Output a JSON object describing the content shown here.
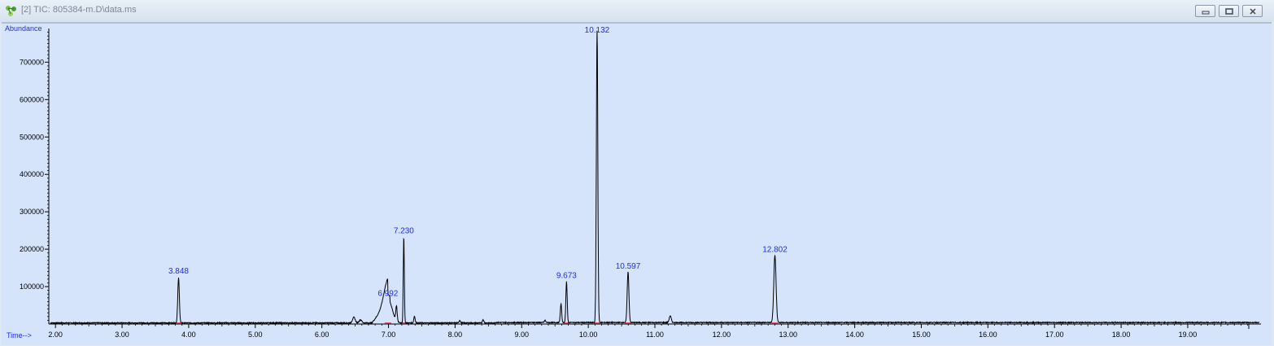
{
  "window": {
    "title": "[2] TIC: 805384-m.D\\data.ms",
    "app_icon": "molecule-icon",
    "buttons": [
      "minimize-icon",
      "restore-icon",
      "close-icon"
    ]
  },
  "colors": {
    "plot_bg": "#d5e3fb",
    "trace": "#000000",
    "labels": "#1f2ee8",
    "baseline_marks": "#e0223c",
    "axis_text": "#000000"
  },
  "chart_data": {
    "type": "line",
    "title": "",
    "ylabel": "Abundance",
    "xlabel": "Time-->",
    "xlim": [
      1.9,
      20.1
    ],
    "ylim": [
      0,
      790000
    ],
    "x_ticks": [
      2.0,
      3.0,
      4.0,
      5.0,
      6.0,
      7.0,
      8.0,
      9.0,
      10.0,
      11.0,
      12.0,
      13.0,
      14.0,
      15.0,
      16.0,
      17.0,
      18.0,
      19.0
    ],
    "x_tick_labels": [
      "2.00",
      "3.00",
      "4.00",
      "5.00",
      "6.00",
      "7.00",
      "8.00",
      "9.00",
      "10.00",
      "11.00",
      "12.00",
      "13.00",
      "14.00",
      "15.00",
      "16.00",
      "17.00",
      "18.00",
      "19.00"
    ],
    "y_ticks": [
      100000,
      200000,
      300000,
      400000,
      500000,
      600000,
      700000
    ],
    "y_tick_labels": [
      "100000",
      "200000",
      "300000",
      "400000",
      "500000",
      "600000",
      "700000"
    ],
    "grid": false,
    "baseline": 3000,
    "peaks": [
      {
        "rt": 3.848,
        "height": 120000,
        "width": 0.012
      },
      {
        "rt": 6.48,
        "height": 15000,
        "width": 0.02
      },
      {
        "rt": 6.58,
        "height": 8000,
        "width": 0.02
      },
      {
        "rt": 6.992,
        "height": 65000,
        "width": 0.06
      },
      {
        "rt": 7.12,
        "height": 40000,
        "width": 0.01
      },
      {
        "rt": 7.23,
        "height": 230000,
        "width": 0.008
      },
      {
        "rt": 7.39,
        "height": 18000,
        "width": 0.01
      },
      {
        "rt": 8.07,
        "height": 7000,
        "width": 0.01
      },
      {
        "rt": 8.42,
        "height": 9000,
        "width": 0.01
      },
      {
        "rt": 9.35,
        "height": 6000,
        "width": 0.01
      },
      {
        "rt": 9.59,
        "height": 50000,
        "width": 0.01
      },
      {
        "rt": 9.673,
        "height": 110000,
        "width": 0.01
      },
      {
        "rt": 10.132,
        "height": 780000,
        "width": 0.011
      },
      {
        "rt": 10.597,
        "height": 135000,
        "width": 0.013
      },
      {
        "rt": 11.23,
        "height": 18000,
        "width": 0.015
      },
      {
        "rt": 12.802,
        "height": 180000,
        "width": 0.017
      }
    ],
    "peak_labels": [
      {
        "text": "3.848",
        "rt": 3.848,
        "y": 135000
      },
      {
        "text": "6.992",
        "rt": 6.992,
        "y": 75000
      },
      {
        "text": "7.230",
        "rt": 7.23,
        "y": 243000
      },
      {
        "text": "9.673",
        "rt": 9.673,
        "y": 123000
      },
      {
        "text": "10.132",
        "rt": 10.132,
        "y": 795000
      },
      {
        "text": "10.597",
        "rt": 10.597,
        "y": 148000
      },
      {
        "text": "12.802",
        "rt": 12.802,
        "y": 193000
      }
    ]
  }
}
